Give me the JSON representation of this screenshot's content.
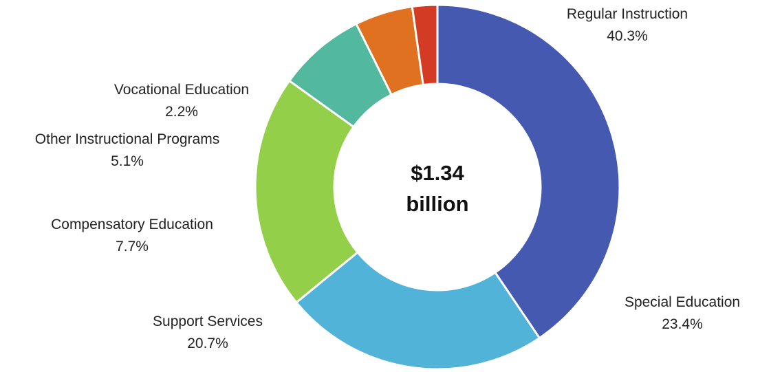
{
  "chart_data": {
    "type": "pie",
    "variant": "donut",
    "center_label": [
      "$1.34",
      "billion"
    ],
    "slices": [
      {
        "label": "Regular Instruction",
        "pct_text": "40.3%",
        "value": 40.3,
        "color": "#4559B0"
      },
      {
        "label": "Special Education",
        "pct_text": "23.4%",
        "value": 23.4,
        "color": "#52B3D9"
      },
      {
        "label": "Support Services",
        "pct_text": "20.7%",
        "value": 20.7,
        "color": "#94CF4A"
      },
      {
        "label": "Compensatory Education",
        "pct_text": "7.7%",
        "value": 7.7,
        "color": "#52B89E"
      },
      {
        "label": "Other Instructional Programs",
        "pct_text": "5.1%",
        "value": 5.1,
        "color": "#E07120"
      },
      {
        "label": "Vocational Education",
        "pct_text": "2.2%",
        "value": 2.2,
        "color": "#D33B24"
      }
    ]
  }
}
